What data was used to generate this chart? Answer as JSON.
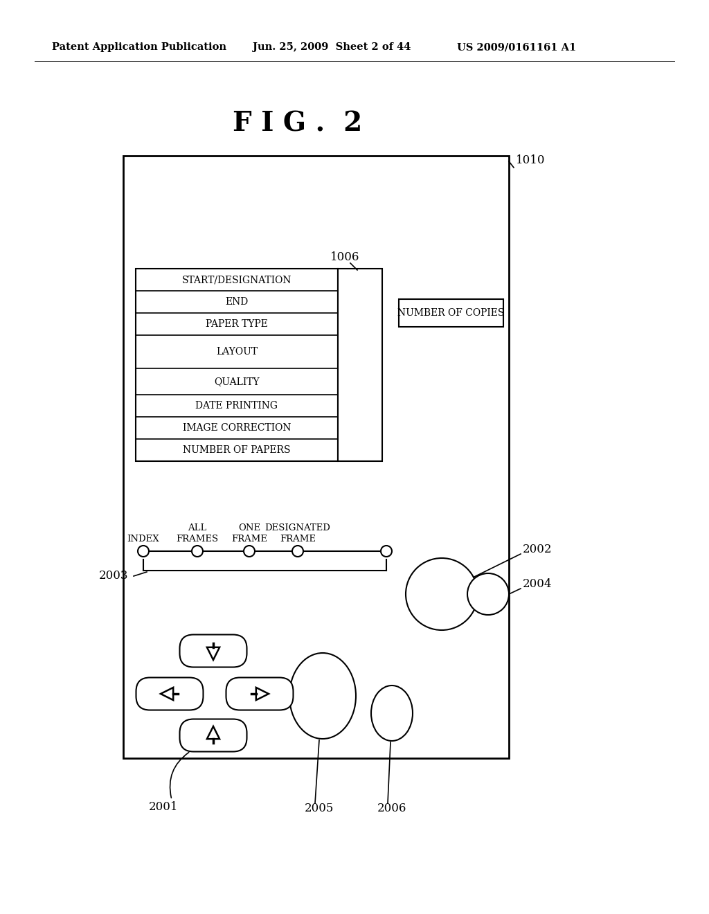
{
  "bg_color": "#ffffff",
  "header_left": "Patent Application Publication",
  "header_mid": "Jun. 25, 2009  Sheet 2 of 44",
  "header_right": "US 2009/0161161 A1",
  "fig_title": "F I G .  2",
  "label_1010": "1010",
  "label_1006": "1006",
  "label_2001": "2001",
  "label_2002": "2002",
  "label_2003": "2003",
  "label_2004": "2004",
  "label_2005": "2005",
  "label_2006": "2006",
  "menu_items": [
    "START/DESIGNATION",
    "END",
    "PAPER TYPE",
    "LAYOUT",
    "QUALITY",
    "DATE PRINTING",
    "IMAGE CORRECTION",
    "NUMBER OF PAPERS"
  ],
  "number_of_copies_label": "NUMBER OF COPIES"
}
